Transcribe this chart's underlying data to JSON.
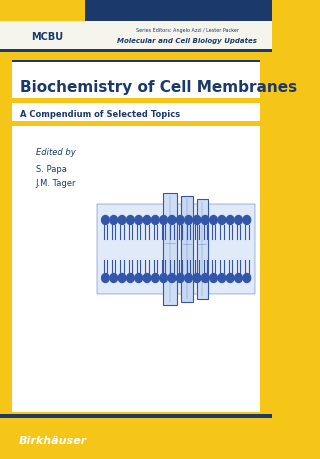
{
  "bg_color": "#F5C518",
  "dark_blue": "#1B3A6B",
  "mid_blue": "#3355AA",
  "light_blue_fill": "#C8D8F0",
  "white": "#FFFFFF",
  "cream": "#F5F5EE",
  "title": "Biochemistry of Cell Membranes",
  "subtitle": "A Compendium of Selected Topics",
  "mcbu_text": "MCBU",
  "series_editors_text": "Series Editors: Angelo Azzi / Lester Packer",
  "series_name": "Molecular and Cell Biology Updates",
  "edited_by": "Edited by",
  "editor1": "S. Papa",
  "editor2": "J.M. Tager",
  "publisher": "Birkhäuser",
  "title_color": "#1B3A6B",
  "text_color": "#1B3A6B",
  "publisher_color": "#FFFFFF"
}
